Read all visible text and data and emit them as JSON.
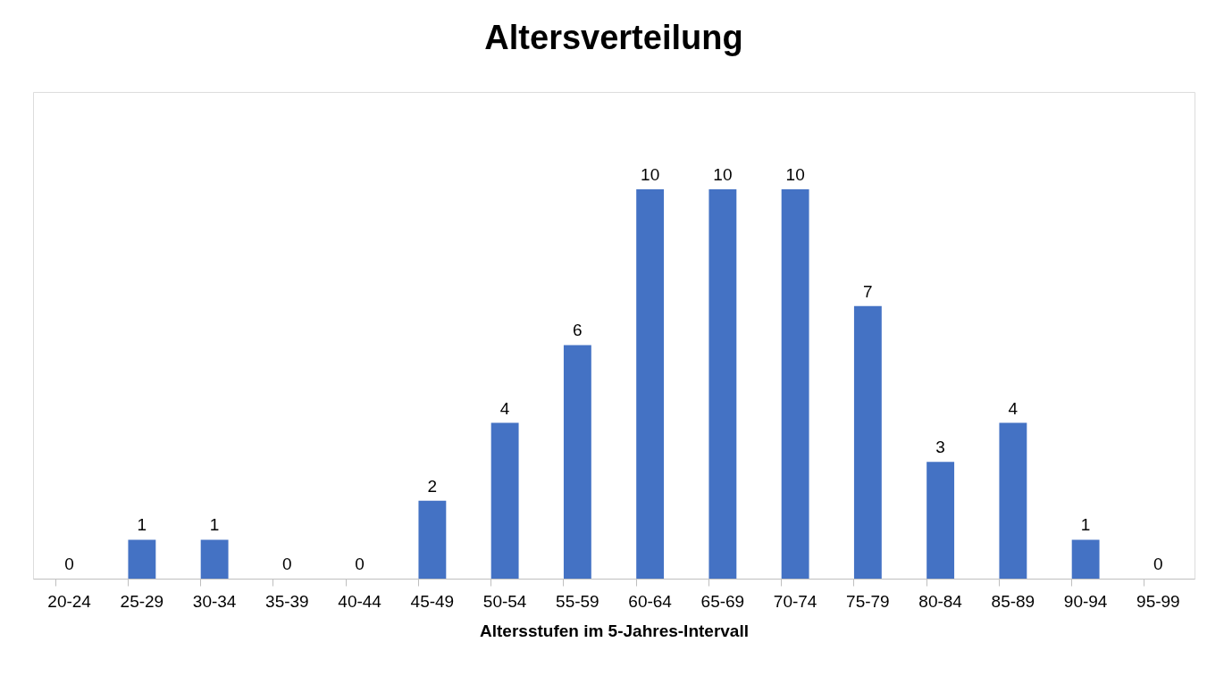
{
  "chart_data": {
    "type": "bar",
    "title": "Altersverteilung",
    "xlabel": "Altersstufen im 5-Jahres-Intervall",
    "categories": [
      "20-24",
      "25-29",
      "30-34",
      "35-39",
      "40-44",
      "45-49",
      "50-54",
      "55-59",
      "60-64",
      "65-69",
      "70-74",
      "75-79",
      "80-84",
      "85-89",
      "90-94",
      "95-99"
    ],
    "values": [
      0,
      1,
      1,
      0,
      0,
      2,
      4,
      6,
      10,
      10,
      10,
      7,
      3,
      4,
      1,
      0
    ],
    "color": "#4472c4",
    "data_labels": true,
    "grid": false
  }
}
